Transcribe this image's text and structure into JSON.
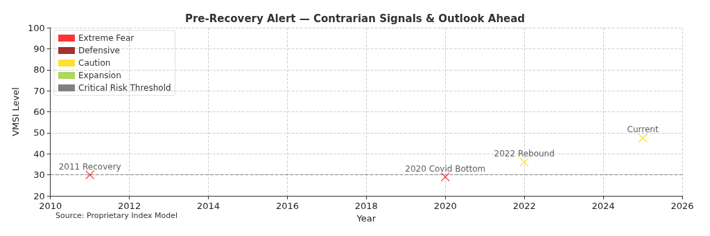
{
  "chart_data": {
    "type": "scatter",
    "title": "Pre-Recovery Alert — Contrarian Signals & Outlook Ahead",
    "xlabel": "Year",
    "ylabel": "VMSI Level",
    "series": [
      {
        "name": "Extreme Fear",
        "color": "#ff0000",
        "x": [
          2011,
          2020
        ],
        "values": [
          30,
          29
        ]
      },
      {
        "name": "Defensive",
        "color": "#8b0000"
      },
      {
        "name": "Caution",
        "color": "#ffd700",
        "x": [
          2022,
          2025
        ],
        "values": [
          36,
          47.5
        ]
      },
      {
        "name": "Expansion",
        "color": "#9acd32"
      }
    ],
    "ref_lines": [
      {
        "axis": "y",
        "value": 30,
        "label": "Critical Risk Threshold",
        "color": "#808080",
        "line_style": "dashed"
      }
    ],
    "annotations": [
      {
        "text": "2011 Recovery",
        "x": 2011,
        "y": 30
      },
      {
        "text": "2020 Covid Bottom",
        "x": 2020,
        "y": 29
      },
      {
        "text": "2022 Rebound",
        "x": 2022,
        "y": 36
      },
      {
        "text": "Current",
        "x": 2025,
        "y": 47.5
      },
      "Source: Proprietary Index Model"
    ],
    "xlim": [
      2010,
      2026
    ],
    "xticks": [
      2010,
      2012,
      2014,
      2016,
      2018,
      2020,
      2022,
      2024,
      2026
    ],
    "ylim": [
      20,
      100
    ],
    "yticks": [
      20,
      30,
      40,
      50,
      60,
      70,
      80,
      90,
      100
    ],
    "grid": true,
    "legend": "top left",
    "marker": "cross"
  }
}
